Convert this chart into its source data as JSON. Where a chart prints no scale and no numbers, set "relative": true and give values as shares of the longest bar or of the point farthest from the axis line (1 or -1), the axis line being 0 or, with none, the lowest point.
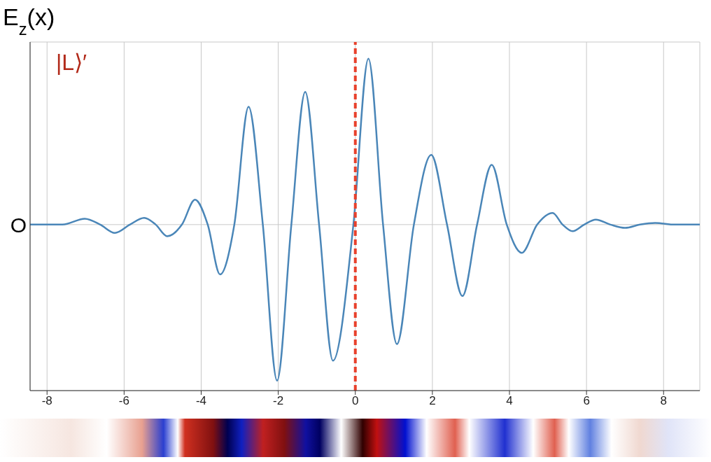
{
  "chart_data": {
    "type": "line",
    "title": "E$_{z}$(x)",
    "relative": true,
    "grid": true,
    "annotations": [
      "|L⟩′",
      "O"
    ],
    "x": [
      -8.44,
      -7.6,
      -7.02,
      -6.62,
      -6.24,
      -5.85,
      -5.48,
      -5.18,
      -4.88,
      -4.5,
      -4.16,
      -3.83,
      -3.51,
      -3.14,
      -2.77,
      -2.4,
      -2.03,
      -1.66,
      -1.3,
      -0.94,
      -0.58,
      -0.05,
      0.34,
      0.72,
      1.08,
      1.52,
      1.97,
      2.38,
      2.78,
      3.16,
      3.54,
      3.93,
      4.32,
      4.72,
      5.12,
      5.38,
      5.64,
      5.94,
      6.24,
      6.62,
      7.0,
      7.39,
      7.78,
      8.3,
      8.94
    ],
    "xlim": [
      -8.44,
      8.94
    ],
    "xticks": [
      -8,
      -6,
      -4,
      -2,
      0,
      2,
      4,
      6,
      8
    ],
    "series": [
      {
        "color": "#4a86b8",
        "values": [
          0,
          0,
          0.035,
          0,
          -0.05,
          0,
          0.04,
          0,
          -0.07,
          0,
          0.15,
          0,
          -0.3,
          0,
          0.71,
          0,
          -0.94,
          0,
          0.8,
          0,
          -0.82,
          0,
          1,
          0,
          -0.72,
          0,
          0.42,
          0,
          -0.43,
          0,
          0.36,
          0,
          -0.17,
          0,
          0.07,
          0,
          -0.04,
          0,
          0.03,
          0,
          -0.02,
          0,
          0.01,
          0,
          0
        ]
      }
    ],
    "ref_lines": [
      {
        "axis": "x",
        "value": 0,
        "color": "#e8412c",
        "line_style": "dashed"
      }
    ]
  }
}
